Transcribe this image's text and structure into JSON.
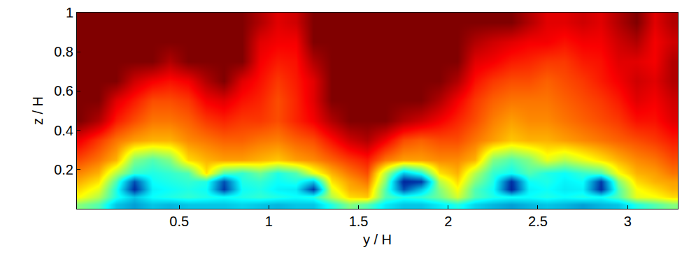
{
  "chart_data": {
    "type": "heatmap",
    "x_label": "y / H",
    "y_label": "z / H",
    "xlim": [
      -0.07,
      3.28
    ],
    "ylim": [
      0,
      1
    ],
    "xticks": [
      0.5,
      1,
      1.5,
      2,
      2.5,
      3
    ],
    "yticks": [
      0.2,
      0.4,
      0.6,
      0.8,
      1
    ],
    "zlim": [
      0,
      1
    ],
    "x": [
      -0.05,
      0.05,
      0.15,
      0.25,
      0.35,
      0.45,
      0.55,
      0.65,
      0.75,
      0.85,
      0.95,
      1.05,
      1.15,
      1.25,
      1.35,
      1.45,
      1.55,
      1.65,
      1.75,
      1.85,
      1.95,
      2.05,
      2.15,
      2.25,
      2.35,
      2.45,
      2.55,
      2.65,
      2.75,
      2.85,
      2.95,
      3.05,
      3.15,
      3.25
    ],
    "y": [
      0.02,
      0.06,
      0.1,
      0.14,
      0.18,
      0.25,
      0.35,
      0.45,
      0.55,
      0.65,
      0.75,
      0.85,
      0.95
    ],
    "cells": [
      [
        0.5,
        0.45,
        0.3,
        0.25,
        0.3,
        0.28,
        0.3,
        0.3,
        0.3,
        0.32,
        0.3,
        0.28,
        0.3,
        0.3,
        0.4,
        0.5,
        0.45,
        0.35,
        0.3,
        0.3,
        0.35,
        0.4,
        0.32,
        0.28,
        0.25,
        0.28,
        0.3,
        0.28,
        0.25,
        0.28,
        0.3,
        0.4,
        0.45,
        0.5
      ],
      [
        0.62,
        0.55,
        0.4,
        0.3,
        0.38,
        0.4,
        0.42,
        0.4,
        0.38,
        0.4,
        0.42,
        0.4,
        0.38,
        0.4,
        0.55,
        0.66,
        0.68,
        0.45,
        0.4,
        0.42,
        0.48,
        0.58,
        0.45,
        0.4,
        0.38,
        0.38,
        0.4,
        0.38,
        0.4,
        0.38,
        0.45,
        0.6,
        0.62,
        0.66
      ],
      [
        0.66,
        0.6,
        0.4,
        0.1,
        0.36,
        0.38,
        0.4,
        0.38,
        0.12,
        0.38,
        0.4,
        0.36,
        0.35,
        0.12,
        0.6,
        0.7,
        0.72,
        0.45,
        0.15,
        0.3,
        0.5,
        0.62,
        0.45,
        0.38,
        0.08,
        0.36,
        0.38,
        0.35,
        0.36,
        0.1,
        0.45,
        0.62,
        0.66,
        0.7
      ],
      [
        0.7,
        0.65,
        0.45,
        0.15,
        0.38,
        0.4,
        0.42,
        0.4,
        0.15,
        0.4,
        0.42,
        0.38,
        0.4,
        0.3,
        0.65,
        0.72,
        0.76,
        0.5,
        0.08,
        0.12,
        0.55,
        0.66,
        0.5,
        0.4,
        0.1,
        0.38,
        0.4,
        0.36,
        0.38,
        0.12,
        0.5,
        0.66,
        0.7,
        0.72
      ],
      [
        0.74,
        0.7,
        0.55,
        0.42,
        0.4,
        0.42,
        0.45,
        0.65,
        0.45,
        0.42,
        0.48,
        0.4,
        0.45,
        0.6,
        0.7,
        0.76,
        0.8,
        0.55,
        0.3,
        0.4,
        0.65,
        0.7,
        0.55,
        0.42,
        0.38,
        0.45,
        0.4,
        0.38,
        0.42,
        0.45,
        0.62,
        0.7,
        0.72,
        0.76
      ],
      [
        0.8,
        0.76,
        0.7,
        0.5,
        0.45,
        0.5,
        0.66,
        0.7,
        0.72,
        0.72,
        0.7,
        0.68,
        0.72,
        0.74,
        0.78,
        0.82,
        0.85,
        0.76,
        0.72,
        0.72,
        0.74,
        0.74,
        0.7,
        0.5,
        0.45,
        0.5,
        0.6,
        0.55,
        0.6,
        0.65,
        0.7,
        0.74,
        0.76,
        0.8
      ],
      [
        0.88,
        0.82,
        0.76,
        0.72,
        0.7,
        0.7,
        0.74,
        0.76,
        0.78,
        0.78,
        0.76,
        0.75,
        0.78,
        0.8,
        0.86,
        0.92,
        0.95,
        0.88,
        0.8,
        0.78,
        0.8,
        0.8,
        0.76,
        0.72,
        0.68,
        0.7,
        0.7,
        0.72,
        0.74,
        0.76,
        0.78,
        0.8,
        0.82,
        0.85
      ],
      [
        1,
        0.95,
        0.85,
        0.8,
        0.76,
        0.76,
        0.78,
        0.82,
        0.84,
        0.82,
        0.82,
        0.8,
        0.84,
        0.88,
        0.95,
        1,
        1,
        1,
        0.95,
        0.92,
        0.88,
        0.84,
        0.8,
        0.75,
        0.72,
        0.74,
        0.74,
        0.76,
        0.78,
        0.8,
        0.82,
        0.86,
        0.86,
        0.9
      ],
      [
        1,
        1,
        0.9,
        0.85,
        0.8,
        0.8,
        0.82,
        0.88,
        0.9,
        0.86,
        0.84,
        0.8,
        0.84,
        0.9,
        1,
        1,
        1,
        1,
        1,
        1,
        0.95,
        0.88,
        0.82,
        0.78,
        0.76,
        0.76,
        0.76,
        0.78,
        0.8,
        0.82,
        0.85,
        0.9,
        0.88,
        0.92
      ],
      [
        1,
        1,
        1,
        0.92,
        0.88,
        0.86,
        0.88,
        0.95,
        1,
        0.9,
        0.86,
        0.82,
        0.85,
        0.9,
        1,
        1,
        1,
        1,
        1,
        1,
        1,
        0.95,
        0.86,
        0.82,
        0.8,
        0.8,
        0.78,
        0.8,
        0.82,
        0.85,
        0.88,
        0.92,
        0.9,
        0.95
      ],
      [
        1,
        1,
        1,
        1,
        1,
        0.95,
        1,
        1,
        1,
        1,
        0.88,
        0.85,
        0.86,
        0.95,
        1,
        1,
        1,
        1,
        1,
        1,
        1,
        1,
        0.9,
        0.88,
        0.85,
        0.84,
        0.82,
        0.82,
        0.85,
        0.86,
        0.9,
        0.9,
        0.88,
        0.95
      ],
      [
        1,
        1,
        1,
        1,
        1,
        1,
        1,
        1,
        1,
        1,
        0.9,
        0.88,
        0.88,
        1,
        1,
        1,
        1,
        1,
        1,
        1,
        1,
        1,
        0.95,
        0.92,
        0.9,
        0.88,
        0.88,
        0.86,
        0.88,
        0.88,
        0.92,
        0.95,
        0.88,
        0.92
      ],
      [
        1,
        1,
        1,
        1,
        1,
        1,
        1,
        1,
        1,
        1,
        0.95,
        0.9,
        0.92,
        1,
        1,
        1,
        1,
        1,
        1,
        1,
        1,
        1,
        1,
        1,
        1,
        0.95,
        0.9,
        0.9,
        0.92,
        0.9,
        0.95,
        1,
        0.9,
        0.95
      ]
    ]
  }
}
